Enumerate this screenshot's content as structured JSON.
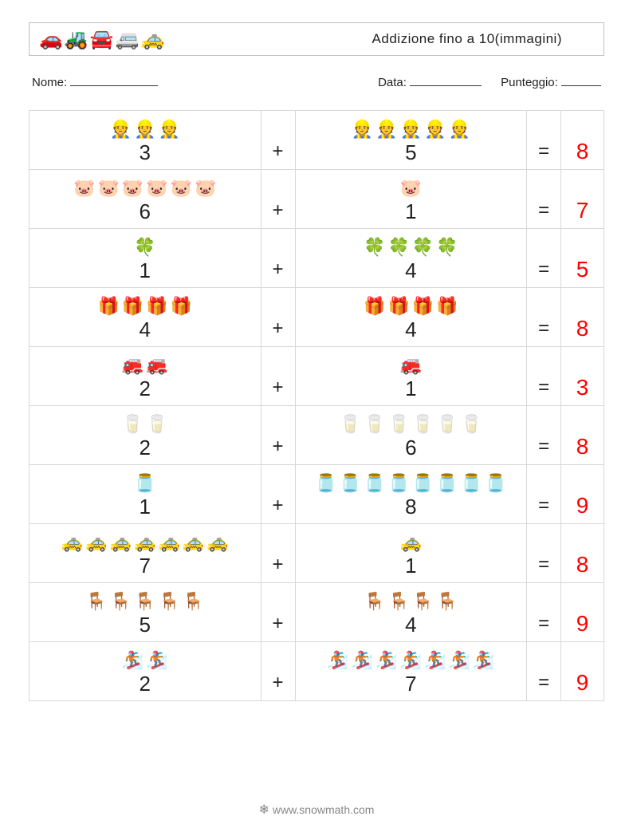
{
  "header": {
    "title": "Addizione fino a 10(immagini)",
    "icons": [
      "🚗",
      "🚜",
      "🚘",
      "🚐",
      "🚕"
    ]
  },
  "meta": {
    "name_label": "Nome:",
    "name_blank_width": 110,
    "date_label": "Data:",
    "date_blank_width": 90,
    "score_label": "Punteggio:",
    "score_blank_width": 50
  },
  "operators": {
    "plus": "+",
    "equals": "="
  },
  "answer_color": "#ff0000",
  "rows": [
    {
      "left_icon": "👷",
      "left_count": 3,
      "right_icon": "👷",
      "right_count": 5,
      "answer": 8
    },
    {
      "left_icon": "🐷",
      "left_count": 6,
      "right_icon": "🐷",
      "right_count": 1,
      "answer": 7
    },
    {
      "left_icon": "🍀",
      "left_count": 1,
      "right_icon": "🍀",
      "right_count": 4,
      "answer": 5
    },
    {
      "left_icon": "🎁",
      "left_count": 4,
      "right_icon": "🎁",
      "right_count": 4,
      "answer": 8
    },
    {
      "left_icon": "🚒",
      "left_count": 2,
      "right_icon": "🚒",
      "right_count": 1,
      "answer": 3
    },
    {
      "left_icon": "🥛",
      "left_count": 2,
      "right_icon": "🥛",
      "right_count": 6,
      "answer": 8
    },
    {
      "left_icon": "🫙",
      "left_count": 1,
      "right_icon": "🫙",
      "right_count": 8,
      "answer": 9
    },
    {
      "left_icon": "🚕",
      "left_count": 7,
      "right_icon": "🚕",
      "right_count": 1,
      "answer": 8
    },
    {
      "left_icon": "🪑",
      "left_count": 5,
      "right_icon": "🪑",
      "right_count": 4,
      "answer": 9
    },
    {
      "left_icon": "🏂",
      "left_count": 2,
      "right_icon": "🏂",
      "right_count": 7,
      "answer": 9
    }
  ],
  "footer": {
    "url_prefix": "www.",
    "url_mid": "snow",
    "url_suffix": "math.com",
    "snow_icon": "❄"
  }
}
